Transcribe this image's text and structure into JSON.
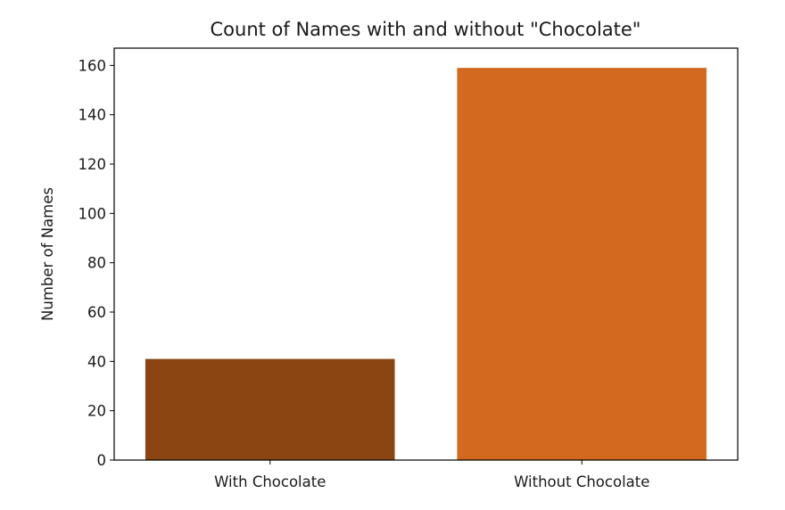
{
  "chart_data": {
    "type": "bar",
    "title": "Count of Names with and without \"Chocolate\"",
    "xlabel": "",
    "ylabel": "Number of Names",
    "categories": [
      "With Chocolate",
      "Without Chocolate"
    ],
    "values": [
      41,
      159
    ],
    "colors": [
      "#8B4513",
      "#D2691E"
    ],
    "ylim": [
      0,
      167
    ],
    "yticks": [
      0,
      20,
      40,
      60,
      80,
      100,
      120,
      140,
      160
    ],
    "grid": false,
    "legend": "none"
  }
}
